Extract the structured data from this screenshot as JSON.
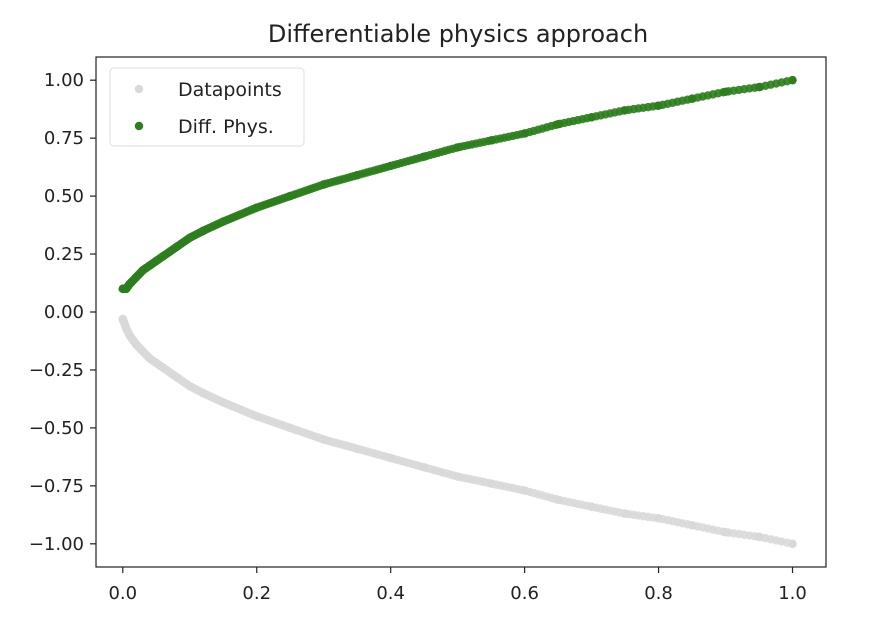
{
  "chart_data": {
    "type": "scatter",
    "title": "Differentiable physics approach",
    "xlabel": "",
    "ylabel": "",
    "xlim": [
      -0.04,
      1.05
    ],
    "ylim": [
      -1.1,
      1.1
    ],
    "xticks": [
      0.0,
      0.2,
      0.4,
      0.6,
      0.8,
      1.0
    ],
    "xtick_labels": [
      "0.0",
      "0.2",
      "0.4",
      "0.6",
      "0.8",
      "1.0"
    ],
    "yticks": [
      1.0,
      0.75,
      0.5,
      0.25,
      0.0,
      -0.25,
      -0.5,
      -0.75,
      -1.0
    ],
    "ytick_labels": [
      "1.00",
      "0.75",
      "0.50",
      "0.25",
      "0.00",
      "−0.25",
      "−0.50",
      "−0.75",
      "−1.00"
    ],
    "grid": false,
    "legend_position": "top-left",
    "series": [
      {
        "name": "Datapoints",
        "color": "#d9d9d9",
        "x": [
          0.0,
          0.005,
          0.01,
          0.02,
          0.03,
          0.04,
          0.05,
          0.06,
          0.08,
          0.1,
          0.12,
          0.15,
          0.2,
          0.25,
          0.3,
          0.35,
          0.4,
          0.45,
          0.5,
          0.55,
          0.6,
          0.65,
          0.7,
          0.75,
          0.8,
          0.85,
          0.9,
          0.95,
          1.0
        ],
        "y": [
          -0.03,
          -0.07,
          -0.1,
          -0.14,
          -0.17,
          -0.2,
          -0.22,
          -0.24,
          -0.28,
          -0.32,
          -0.35,
          -0.39,
          -0.45,
          -0.5,
          -0.55,
          -0.59,
          -0.63,
          -0.67,
          -0.71,
          -0.74,
          -0.77,
          -0.81,
          -0.84,
          -0.87,
          -0.89,
          -0.92,
          -0.95,
          -0.97,
          -1.0
        ]
      },
      {
        "name": "Diff. Phys.",
        "color": "#2e7d1e",
        "x": [
          0.0,
          0.005,
          0.01,
          0.02,
          0.03,
          0.04,
          0.05,
          0.06,
          0.08,
          0.1,
          0.12,
          0.15,
          0.2,
          0.25,
          0.3,
          0.35,
          0.4,
          0.45,
          0.5,
          0.55,
          0.6,
          0.65,
          0.7,
          0.75,
          0.8,
          0.85,
          0.9,
          0.95,
          1.0
        ],
        "y": [
          0.1,
          0.1,
          0.12,
          0.15,
          0.18,
          0.2,
          0.22,
          0.24,
          0.28,
          0.32,
          0.35,
          0.39,
          0.45,
          0.5,
          0.55,
          0.59,
          0.63,
          0.67,
          0.71,
          0.74,
          0.77,
          0.81,
          0.84,
          0.87,
          0.89,
          0.92,
          0.95,
          0.97,
          1.0
        ]
      }
    ]
  }
}
